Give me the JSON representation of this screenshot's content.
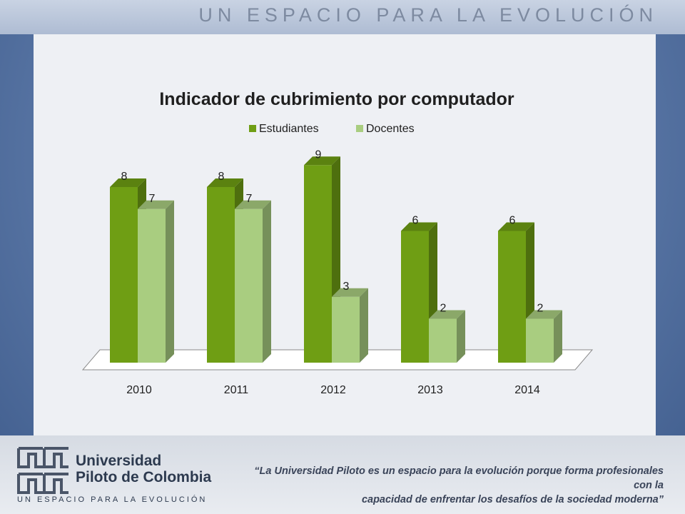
{
  "banner": {
    "text": "UN ESPACIO PARA LA EVOLUCIÓN"
  },
  "chart_data": {
    "type": "bar",
    "title": "Indicador de cubrimiento por computador",
    "categories": [
      "2010",
      "2011",
      "2012",
      "2013",
      "2014"
    ],
    "series": [
      {
        "name": "Estudiantes",
        "values": [
          8,
          8,
          9,
          6,
          6
        ],
        "color": "#6f9e14"
      },
      {
        "name": "Docentes",
        "values": [
          7,
          7,
          3,
          2,
          2
        ],
        "color": "#a9cd80"
      }
    ],
    "ylim": [
      0,
      9
    ],
    "grid": false,
    "legend": "top"
  },
  "footer": {
    "university_line1": "Universidad",
    "university_line2": "Piloto de Colombia",
    "tagline": "UN ESPACIO PARA LA EVOLUCIÓN",
    "quote_line1": "“La Universidad Piloto es un espacio para la evolución porque forma profesionales con la",
    "quote_line2": "capacidad de enfrentar los desafíos de la sociedad moderna”"
  }
}
